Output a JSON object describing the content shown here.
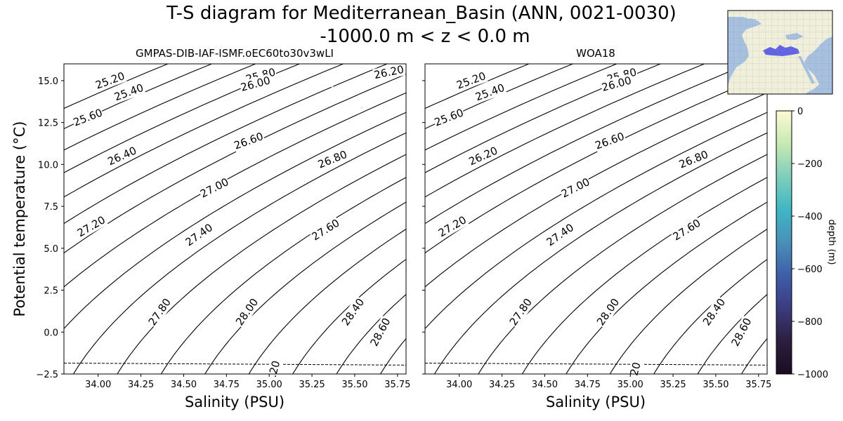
{
  "figure": {
    "title_line1": "T-S diagram for Mediterranean_Basin (ANN, 0021-0030)",
    "title_line2": "-1000.0 m < z < 0.0 m"
  },
  "chart_data": [
    {
      "type": "line",
      "subtitle": "GMPAS-DIB-IAF-ISMF.oEC60to30v3wLI",
      "xlabel": "Salinity (PSU)",
      "ylabel": "Potential temperature ($^\\circ$C)",
      "ylabel_display": "Potential temperature (°C)",
      "xlim": [
        33.8,
        35.8
      ],
      "ylim": [
        -2.5,
        16.0
      ],
      "xticks": [
        "34.00",
        "34.25",
        "34.50",
        "34.75",
        "35.00",
        "35.25",
        "35.50",
        "35.75"
      ],
      "yticks": [
        "−2.5",
        "0.0",
        "2.5",
        "5.0",
        "7.5",
        "10.0",
        "12.5",
        "15.0"
      ],
      "contour_levels": [
        25.0,
        25.2,
        25.4,
        25.6,
        25.8,
        26.0,
        26.2,
        26.4,
        26.6,
        26.8,
        27.0,
        27.2,
        27.4,
        27.6,
        27.8,
        28.0,
        28.2,
        28.4,
        28.6,
        28.8
      ],
      "contour_labels": [
        "25.20",
        "25.40",
        "25.60",
        "25.80",
        "26.00",
        "26.20",
        "26.40",
        "26.60",
        "26.80",
        "27.00",
        "27.20",
        "27.40",
        "27.60",
        "27.80",
        "28.00",
        ".20",
        "28.40",
        "28.60"
      ],
      "freezing_line": {
        "s": [
          33.8,
          35.8
        ],
        "t": [
          -1.85,
          -1.97
        ]
      },
      "scatter_points": [
        {
          "s": 35.37,
          "t": 14.6
        },
        {
          "s": 35.54,
          "t": 13.4
        }
      ]
    },
    {
      "type": "line",
      "subtitle": "WOA18",
      "xlabel": "Salinity (PSU)",
      "xlim": [
        33.8,
        35.8
      ],
      "ylim": [
        -2.5,
        16.0
      ],
      "xticks": [
        "34.00",
        "34.25",
        "34.50",
        "34.75",
        "35.00",
        "35.25",
        "35.50",
        "35.75"
      ],
      "contour_levels": [
        25.0,
        25.2,
        25.4,
        25.6,
        25.8,
        26.0,
        26.2,
        26.4,
        26.6,
        26.8,
        27.0,
        27.2,
        27.4,
        27.6,
        27.8,
        28.0,
        28.2,
        28.4,
        28.6,
        28.8
      ],
      "contour_labels": [
        "25.20",
        "25.40",
        "25.60",
        "25.80",
        "26.00",
        "26.20",
        "26.60",
        "26.80",
        "27.00",
        "27.20",
        "27.40",
        "27.60",
        "27.80",
        "28.00",
        "20",
        "28.40",
        "28.60"
      ],
      "freezing_line": {
        "s": [
          33.8,
          35.8
        ],
        "t": [
          -1.85,
          -1.97
        ]
      },
      "scatter_points": []
    }
  ],
  "colorbar": {
    "label": "depth (m)",
    "range": [
      -1000,
      0
    ],
    "ticks": [
      "0",
      "−200",
      "−400",
      "−600",
      "−800",
      "−1000"
    ],
    "tick_values": [
      0,
      -200,
      -400,
      -600,
      -800,
      -1000
    ],
    "colors": [
      "#fbfbd3",
      "#c7e9b3",
      "#7fcdbb",
      "#41b6c4",
      "#4a8fb9",
      "#3f5ea8",
      "#3c3b80",
      "#2c1e3d",
      "#1a0d21"
    ]
  },
  "inset_map": {
    "region": "Mediterranean_Basin",
    "ocean_color": "#a8c0e0",
    "land_color": "#efefdc",
    "region_color": "#4a4ae6"
  }
}
